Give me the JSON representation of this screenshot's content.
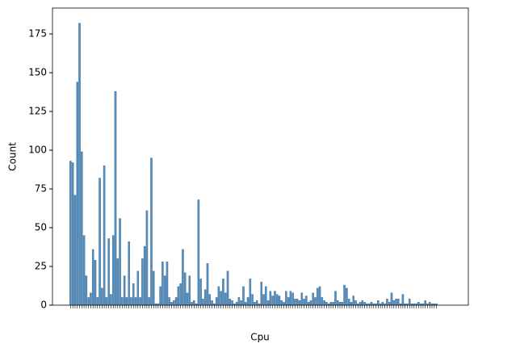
{
  "chart_data": {
    "type": "bar",
    "x_label": "Cpu",
    "y_label": "Count",
    "categories": [
      null,
      null,
      null,
      null,
      null,
      null,
      null,
      null,
      null,
      null,
      null,
      null,
      null,
      null,
      null,
      null,
      null,
      null,
      null,
      null,
      null,
      null,
      null,
      null,
      null,
      null,
      null,
      null,
      null,
      null,
      null,
      null,
      null,
      null,
      null,
      null,
      null,
      null,
      null,
      null,
      null,
      null,
      null,
      null,
      null,
      null,
      null,
      null,
      null,
      null,
      null,
      null,
      null,
      null,
      null,
      null,
      null,
      null,
      null,
      null,
      null,
      null,
      null,
      null,
      null,
      null,
      null,
      null,
      null,
      null,
      null,
      null,
      null,
      null,
      null,
      null,
      null,
      null,
      null,
      null,
      null,
      null,
      null,
      null,
      null,
      null,
      null,
      null,
      null,
      null,
      null,
      null,
      null,
      null,
      null,
      null,
      null,
      null,
      null,
      null,
      null,
      null,
      null,
      null,
      null,
      null,
      null,
      null,
      null,
      null,
      null,
      null,
      null,
      null,
      null,
      null,
      null,
      null,
      null,
      null,
      null,
      null,
      null,
      null,
      null,
      null,
      null,
      null,
      null,
      null,
      null,
      null,
      null,
      null,
      null,
      null,
      null,
      null,
      null,
      null,
      null,
      null,
      null,
      null,
      null,
      null,
      null,
      null,
      null,
      null,
      null,
      null,
      null,
      null,
      null,
      null,
      null,
      null,
      null,
      null,
      null,
      null,
      null,
      null
    ],
    "values": [
      93,
      92,
      71,
      144,
      182,
      99,
      45,
      19,
      5,
      8,
      36,
      29,
      5,
      82,
      11,
      90,
      5,
      43,
      7,
      45,
      138,
      30,
      56,
      5,
      19,
      5,
      41,
      5,
      14,
      5,
      22,
      5,
      30,
      38,
      61,
      5,
      95,
      22,
      1,
      1,
      12,
      28,
      19,
      28,
      5,
      2,
      3,
      5,
      12,
      14,
      36,
      21,
      8,
      19,
      2,
      3,
      1,
      68,
      17,
      4,
      10,
      27,
      7,
      3,
      1,
      5,
      12,
      9,
      17,
      8,
      22,
      4,
      3,
      1,
      2,
      5,
      3,
      12,
      2,
      5,
      17,
      7,
      2,
      3,
      1,
      15,
      7,
      12,
      3,
      9,
      6,
      9,
      7,
      6,
      3,
      2,
      9,
      5,
      9,
      8,
      4,
      4,
      3,
      8,
      4,
      6,
      2,
      3,
      8,
      5,
      11,
      12,
      5,
      3,
      2,
      1,
      2,
      2,
      9,
      3,
      2,
      2,
      13,
      11,
      4,
      2,
      6,
      3,
      1,
      2,
      3,
      2,
      1,
      1,
      2,
      1,
      1,
      3,
      1,
      2,
      1,
      4,
      2,
      8,
      3,
      4,
      4,
      1,
      7,
      1,
      1,
      4,
      1,
      1,
      1,
      2,
      1,
      1,
      3,
      1,
      2,
      1,
      1,
      1
    ],
    "color": "#4c87b9",
    "ylim": [
      0,
      191.7
    ],
    "yticks": [
      0,
      25,
      50,
      75,
      100,
      125,
      150,
      175
    ]
  }
}
